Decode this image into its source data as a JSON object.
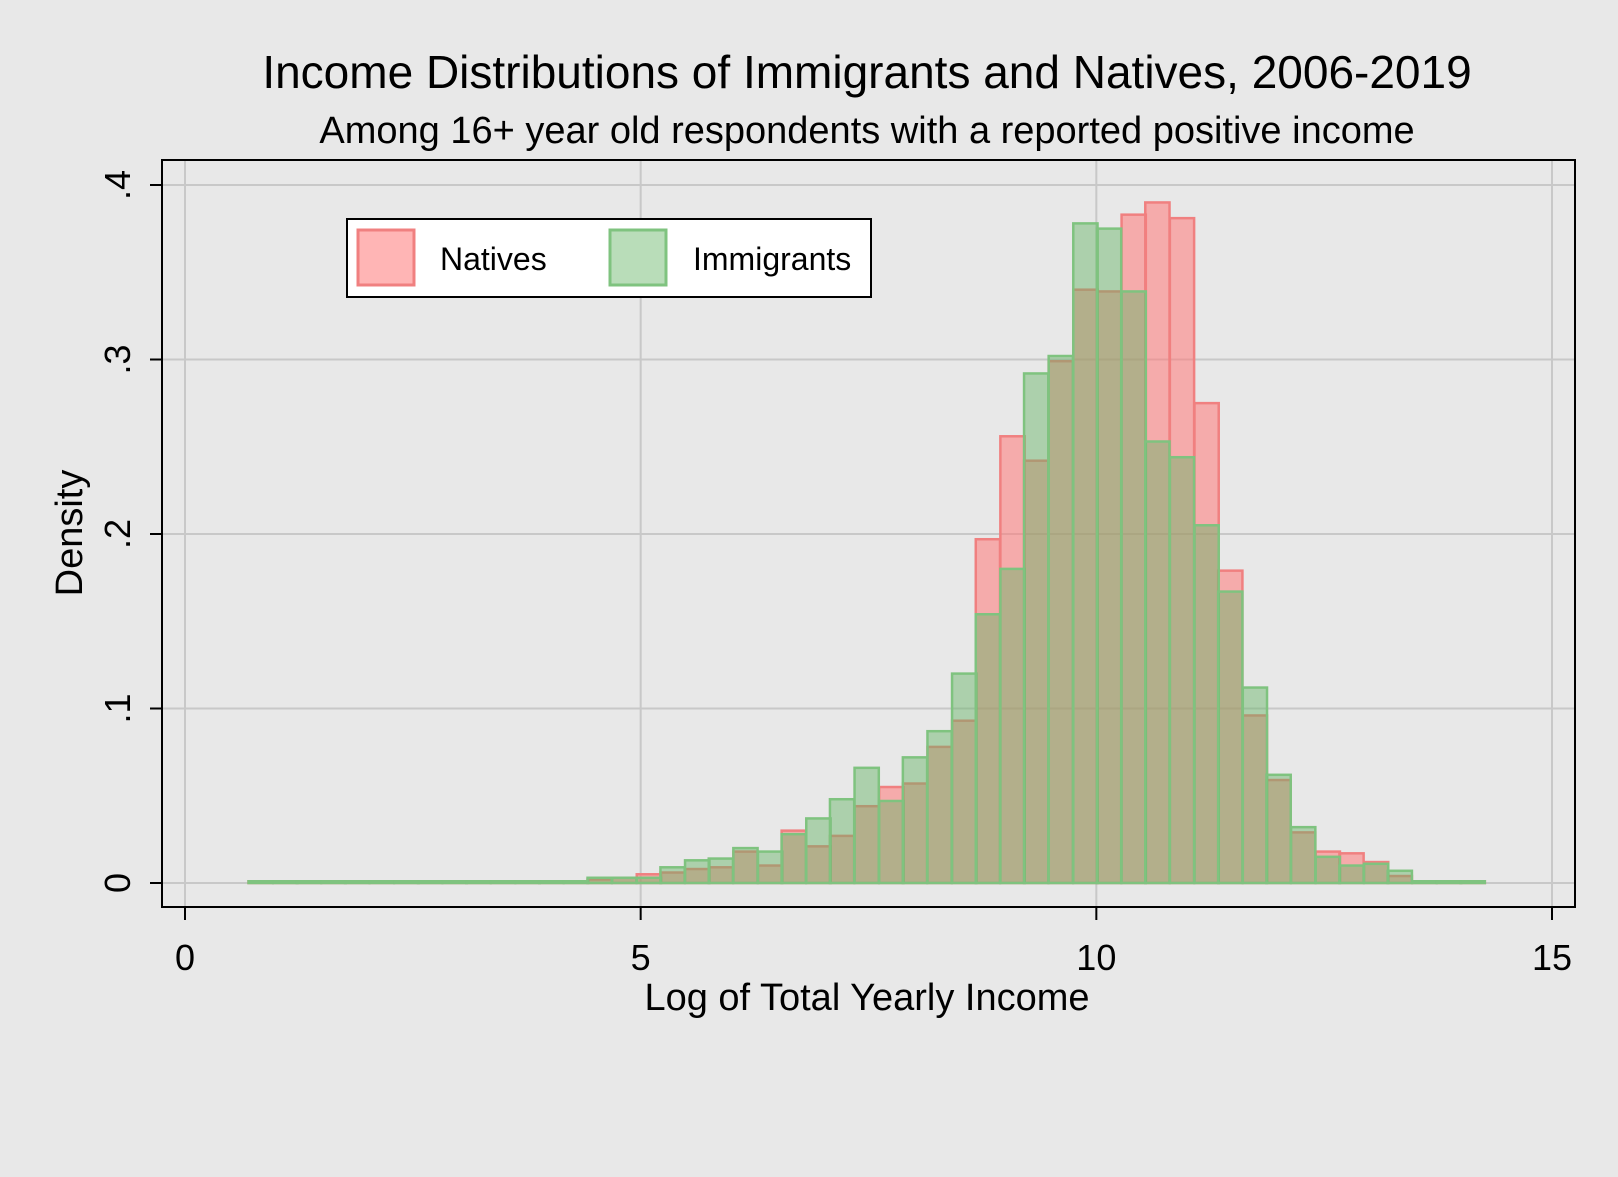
{
  "chart_data": {
    "type": "bar",
    "title": "Income Distributions of Immigrants and Natives, 2006-2019",
    "subtitle": "Among 16+ year old respondents with a reported positive income",
    "xlabel": "Log of Total Yearly Income",
    "ylabel": "Density",
    "xlim": [
      0,
      15
    ],
    "ylim": [
      0,
      0.4
    ],
    "x_ticks": [
      {
        "value": 0,
        "label": "0"
      },
      {
        "value": 5,
        "label": "5"
      },
      {
        "value": 10,
        "label": "10"
      },
      {
        "value": 15,
        "label": "15"
      }
    ],
    "y_ticks": [
      {
        "value": 0,
        "label": "0"
      },
      {
        "value": 0.1,
        "label": ".1"
      },
      {
        "value": 0.2,
        "label": ".2"
      },
      {
        "value": 0.3,
        "label": ".3"
      },
      {
        "value": 0.4,
        "label": ".4"
      }
    ],
    "grid": true,
    "legend_position": "top-left",
    "bin_width": 0.266,
    "x": [
      0.83,
      1.1,
      1.36,
      1.63,
      1.89,
      2.16,
      2.43,
      2.69,
      2.96,
      3.22,
      3.49,
      3.76,
      4.02,
      4.29,
      4.55,
      4.82,
      5.09,
      5.35,
      5.62,
      5.88,
      6.15,
      6.42,
      6.68,
      6.95,
      7.21,
      7.48,
      7.75,
      8.01,
      8.28,
      8.55,
      8.81,
      9.08,
      9.34,
      9.61,
      9.88,
      10.14,
      10.41,
      10.67,
      10.94,
      11.21,
      11.47,
      11.74,
      12.0,
      12.27,
      12.54,
      12.8,
      13.07,
      13.33,
      13.6,
      13.87,
      14.13
    ],
    "series": [
      {
        "name": "Natives",
        "color": "#f08080",
        "values": [
          0.001,
          0.001,
          0.001,
          0.001,
          0.001,
          0.001,
          0.001,
          0.001,
          0.001,
          0.001,
          0.001,
          0.001,
          0.001,
          0.001,
          0.002,
          0.003,
          0.005,
          0.006,
          0.008,
          0.009,
          0.018,
          0.01,
          0.03,
          0.021,
          0.027,
          0.044,
          0.055,
          0.057,
          0.078,
          0.093,
          0.197,
          0.256,
          0.242,
          0.299,
          0.34,
          0.339,
          0.383,
          0.39,
          0.381,
          0.275,
          0.179,
          0.096,
          0.059,
          0.029,
          0.018,
          0.017,
          0.012,
          0.004,
          0.001,
          0.001,
          0.001
        ]
      },
      {
        "name": "Immigrants",
        "color": "#7fc37f",
        "values": [
          0.001,
          0.001,
          0.001,
          0.001,
          0.001,
          0.001,
          0.001,
          0.001,
          0.001,
          0.001,
          0.001,
          0.001,
          0.001,
          0.001,
          0.003,
          0.003,
          0.003,
          0.009,
          0.013,
          0.014,
          0.02,
          0.018,
          0.028,
          0.037,
          0.048,
          0.066,
          0.047,
          0.072,
          0.087,
          0.12,
          0.154,
          0.18,
          0.292,
          0.302,
          0.378,
          0.375,
          0.339,
          0.253,
          0.244,
          0.205,
          0.167,
          0.112,
          0.062,
          0.032,
          0.015,
          0.01,
          0.011,
          0.007,
          0.001,
          0.001,
          0.001
        ]
      }
    ]
  }
}
